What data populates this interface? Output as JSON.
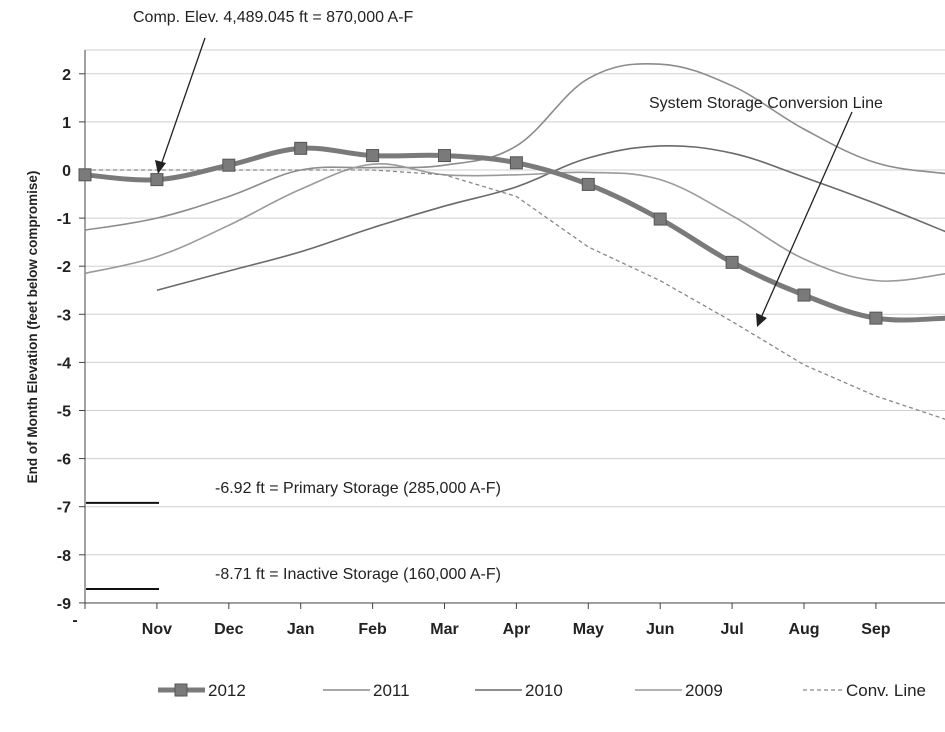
{
  "chart_data": {
    "type": "line",
    "ylabel": "End of Month Elevation (feet below compromise)",
    "ylim": [
      -9,
      2.5
    ],
    "y_ticks": [
      "2",
      "1",
      "0",
      "-1",
      "-2",
      "-3",
      "-4",
      "-5",
      "-6",
      "-7",
      "-8",
      "-9"
    ],
    "x_ticks": [
      "-",
      "Nov",
      "Dec",
      "Jan",
      "Feb",
      "Mar",
      "Apr",
      "May",
      "Jun",
      "Jul",
      "Aug",
      "Sep"
    ],
    "series": [
      {
        "name": "2012",
        "color": "#7a7a7a",
        "points": [
          [
            0,
            -0.1
          ],
          [
            1,
            -0.2
          ],
          [
            2,
            0.1
          ],
          [
            3,
            0.45
          ],
          [
            4,
            0.3
          ],
          [
            5,
            0.3
          ],
          [
            6,
            0.15
          ],
          [
            7,
            -0.3
          ],
          [
            8,
            -1.02
          ],
          [
            9,
            -1.92
          ],
          [
            10,
            -2.6
          ],
          [
            11,
            -3.08
          ],
          [
            12,
            -3.08
          ]
        ]
      },
      {
        "name": "2011",
        "color": "#8c8c8c",
        "points": [
          [
            0,
            -1.25
          ],
          [
            1,
            -1.0
          ],
          [
            2,
            -0.55
          ],
          [
            3,
            0.0
          ],
          [
            4,
            0.05
          ],
          [
            5,
            0.1
          ],
          [
            6,
            0.5
          ],
          [
            7,
            1.9
          ],
          [
            8,
            2.2
          ],
          [
            9,
            1.75
          ],
          [
            10,
            0.85
          ],
          [
            11,
            0.15
          ],
          [
            12,
            -0.08
          ]
        ]
      },
      {
        "name": "2010",
        "color": "#6a6a6a",
        "points": [
          [
            1,
            -2.5
          ],
          [
            2,
            -2.1
          ],
          [
            3,
            -1.7
          ],
          [
            4,
            -1.2
          ],
          [
            5,
            -0.75
          ],
          [
            6,
            -0.35
          ],
          [
            7,
            0.25
          ],
          [
            8,
            0.5
          ],
          [
            9,
            0.35
          ],
          [
            10,
            -0.15
          ],
          [
            11,
            -0.7
          ],
          [
            12,
            -1.3
          ]
        ]
      },
      {
        "name": "2009",
        "color": "#9a9a9a",
        "points": [
          [
            0,
            -2.15
          ],
          [
            1,
            -1.8
          ],
          [
            2,
            -1.15
          ],
          [
            3,
            -0.4
          ],
          [
            4,
            0.12
          ],
          [
            5,
            -0.1
          ],
          [
            6,
            -0.1
          ],
          [
            7,
            -0.05
          ],
          [
            8,
            -0.2
          ],
          [
            9,
            -0.95
          ],
          [
            10,
            -1.85
          ],
          [
            11,
            -2.3
          ],
          [
            12,
            -2.15
          ]
        ]
      },
      {
        "name": "Conv. Line",
        "color": "#888888",
        "dashed": true,
        "points": [
          [
            0,
            0.0
          ],
          [
            1,
            0.0
          ],
          [
            2,
            0.0
          ],
          [
            3,
            0.0
          ],
          [
            4,
            0.0
          ],
          [
            5,
            -0.1
          ],
          [
            6,
            -0.55
          ],
          [
            7,
            -1.6
          ],
          [
            8,
            -2.3
          ],
          [
            9,
            -3.15
          ],
          [
            10,
            -4.05
          ],
          [
            11,
            -4.7
          ],
          [
            12,
            -5.2
          ]
        ]
      }
    ],
    "reference_lines": [
      {
        "value": -6.92,
        "label": "-6.92 ft = Primary Storage (285,000 A-F)"
      },
      {
        "value": -8.71,
        "label": "-8.71 ft = Inactive Storage (160,000 A-F)"
      }
    ],
    "annotations": {
      "top": "Comp. Elev. 4,489.045 ft = 870,000 A-F",
      "conversion": "System Storage Conversion Line"
    },
    "grid": true,
    "legend_position": "bottom"
  }
}
